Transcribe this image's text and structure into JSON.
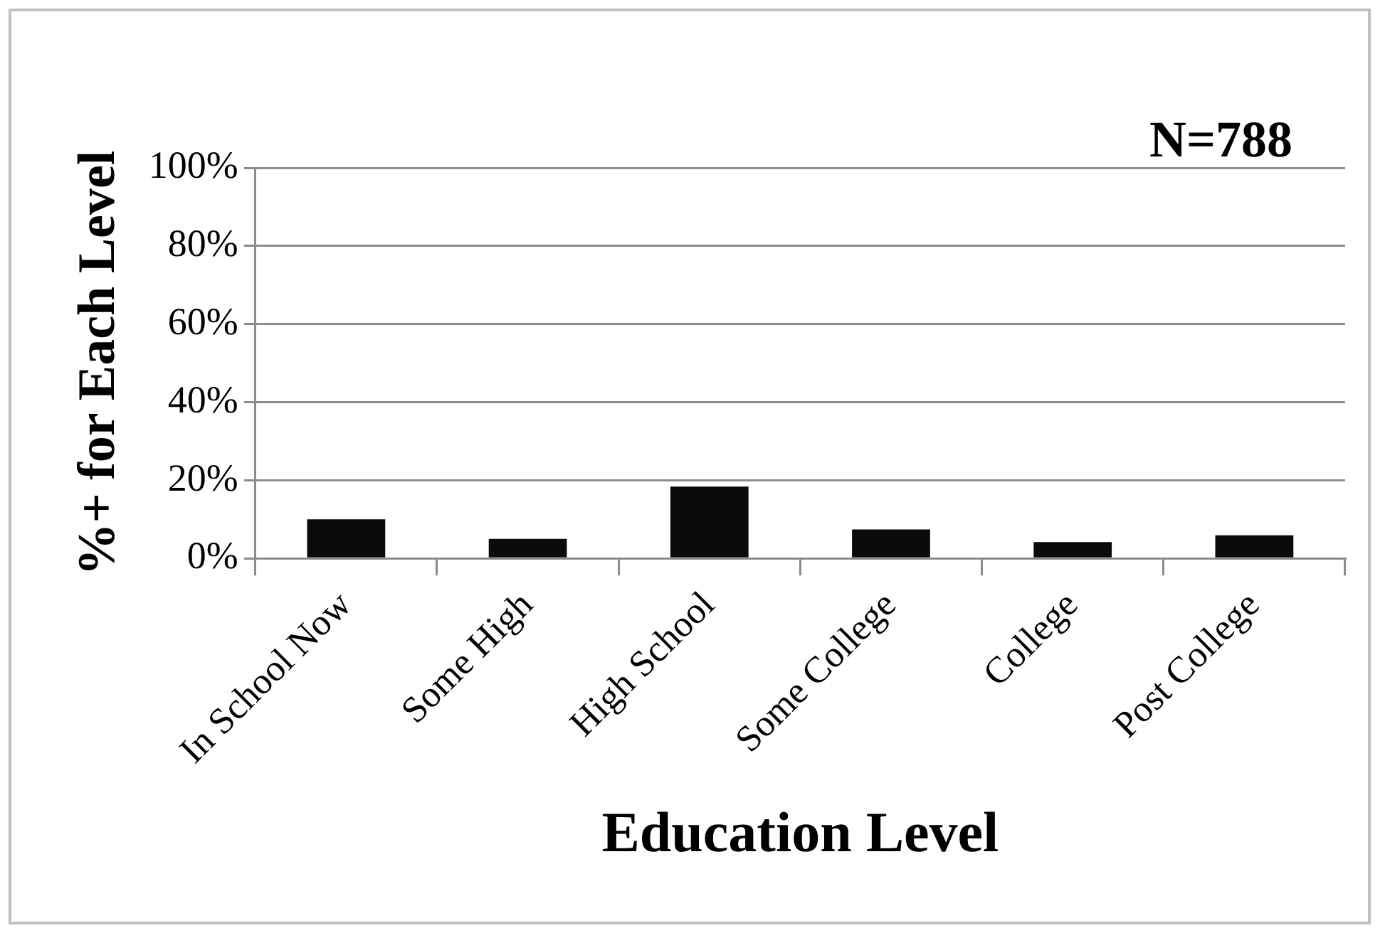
{
  "chart_data": {
    "type": "bar",
    "xlabel": "Education Level",
    "ylabel": "%+ for Each Level",
    "annotations": [
      "N=788"
    ],
    "categories": [
      "In School Now",
      "Some High",
      "High School",
      "Some College",
      "College",
      "Post College"
    ],
    "values": [
      10,
      5,
      18.4,
      7.4,
      4.2,
      5.9
    ],
    "color": "#0a0a0a",
    "ylim": [
      0,
      100
    ],
    "yticks": [
      {
        "value": 0,
        "label": "0%"
      },
      {
        "value": 20,
        "label": "20%"
      },
      {
        "value": 40,
        "label": "40%"
      },
      {
        "value": 60,
        "label": "60%"
      },
      {
        "value": 80,
        "label": "80%"
      },
      {
        "value": 100,
        "label": "100%"
      }
    ],
    "grid": "y"
  }
}
